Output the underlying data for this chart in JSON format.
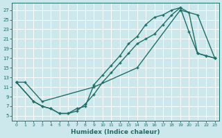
{
  "xlabel": "Humidex (Indice chaleur)",
  "bg_color": "#cce8ec",
  "grid_color": "#ffffff",
  "line_color": "#1a6e65",
  "xlim": [
    -0.5,
    23.5
  ],
  "ylim": [
    4.0,
    28.5
  ],
  "xticks": [
    0,
    1,
    2,
    3,
    4,
    5,
    6,
    7,
    8,
    9,
    10,
    11,
    12,
    13,
    14,
    15,
    16,
    17,
    18,
    19,
    20,
    21,
    22,
    23
  ],
  "yticks": [
    5,
    7,
    9,
    11,
    13,
    15,
    17,
    19,
    21,
    23,
    25,
    27
  ],
  "line1_x": [
    0,
    1,
    3,
    9,
    14,
    19,
    21,
    23
  ],
  "line1_y": [
    12,
    12,
    8,
    11,
    15,
    27,
    26,
    17
  ],
  "line2_x": [
    0,
    2,
    3,
    4,
    5,
    6,
    7,
    8,
    9,
    10,
    11,
    12,
    13,
    14,
    15,
    16,
    17,
    18,
    19,
    20,
    21,
    22,
    23
  ],
  "line2_y": [
    12,
    8,
    7,
    6.5,
    5.5,
    5.5,
    6,
    7.5,
    9.5,
    12,
    14,
    16,
    18,
    20,
    21,
    22,
    24,
    26,
    27.5,
    26.5,
    18,
    17.5,
    17
  ],
  "line3_x": [
    0,
    2,
    3,
    4,
    5,
    6,
    7,
    8,
    9,
    10,
    11,
    12,
    13,
    14,
    15,
    16,
    17,
    18,
    19,
    20,
    21,
    22,
    23
  ],
  "line3_y": [
    12,
    8,
    7,
    6.5,
    5.5,
    5.5,
    6.5,
    7,
    11.5,
    13.5,
    15.5,
    17.5,
    20,
    21.5,
    24,
    25.5,
    26,
    27,
    27.5,
    22.5,
    18,
    17.5,
    17
  ]
}
